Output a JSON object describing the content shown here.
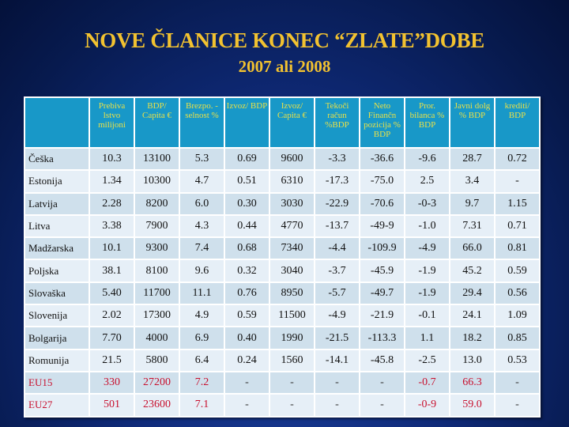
{
  "title": "NOVE ČLANICE KONEC “ZLATE”DOBE",
  "subtitle": "2007 ali 2008",
  "colors": {
    "header_bg": "#1898c8",
    "header_text": "#e8e048",
    "title": "#f2c230",
    "eu_text": "#c8102e"
  },
  "table": {
    "headers": [
      "",
      "Prebiva lstvo milijoni",
      "BDP/ Capita €",
      "Brezpo. -selnost %",
      "Izvoz/ BDP",
      "Izvoz/ Capita €",
      "Tekoči račun %BDP",
      "Neto Finančn pozicija % BDP",
      "Pror. bilanca % BDP",
      "Javni dolg % BDP",
      "krediti/ BDP"
    ],
    "rows": [
      [
        "Češka",
        "10.3",
        "13100",
        "5.3",
        "0.69",
        "9600",
        "-3.3",
        "-36.6",
        "-9.6",
        "28.7",
        "0.72"
      ],
      [
        "Estonija",
        "1.34",
        "10300",
        "4.7",
        "0.51",
        "6310",
        "-17.3",
        "-75.0",
        "2.5",
        "3.4",
        "-"
      ],
      [
        "Latvija",
        "2.28",
        "8200",
        "6.0",
        "0.30",
        "3030",
        "-22.9",
        "-70.6",
        "-0-3",
        "9.7",
        "1.15"
      ],
      [
        "Litva",
        "3.38",
        "7900",
        "4.3",
        "0.44",
        "4770",
        "-13.7",
        "-49-9",
        "-1.0",
        "7.31",
        "0.71"
      ],
      [
        "Madžarska",
        "10.1",
        "9300",
        "7.4",
        "0.68",
        "7340",
        "-4.4",
        "-109.9",
        "-4.9",
        "66.0",
        "0.81"
      ],
      [
        "Poljska",
        "38.1",
        "8100",
        "9.6",
        "0.32",
        "3040",
        "-3.7",
        "-45.9",
        "-1.9",
        "45.2",
        "0.59"
      ],
      [
        "Slovaška",
        "5.40",
        "11700",
        "11.1",
        "0.76",
        "8950",
        "-5.7",
        "-49.7",
        "-1.9",
        "29.4",
        "0.56"
      ],
      [
        "Slovenija",
        "2.02",
        "17300",
        "4.9",
        "0.59",
        "11500",
        "-4.9",
        "-21.9",
        "-0.1",
        "24.1",
        "1.09"
      ],
      [
        "Bolgarija",
        "7.70",
        "4000",
        "6.9",
        "0.40",
        "1990",
        "-21.5",
        "-113.3",
        "1.1",
        "18.2",
        "0.85"
      ],
      [
        "Romunija",
        "21.5",
        "5800",
        "6.4",
        "0.24",
        "1560",
        "-14.1",
        "-45.8",
        "-2.5",
        "13.0",
        "0.53"
      ],
      [
        "EU15",
        "330",
        "27200",
        "7.2",
        "-",
        "-",
        "-",
        "-",
        "-0.7",
        "66.3",
        "-"
      ],
      [
        "EU27",
        "501",
        "23600",
        "7.1",
        "-",
        "-",
        "-",
        "-",
        "-0-9",
        "59.0",
        "-"
      ]
    ]
  }
}
